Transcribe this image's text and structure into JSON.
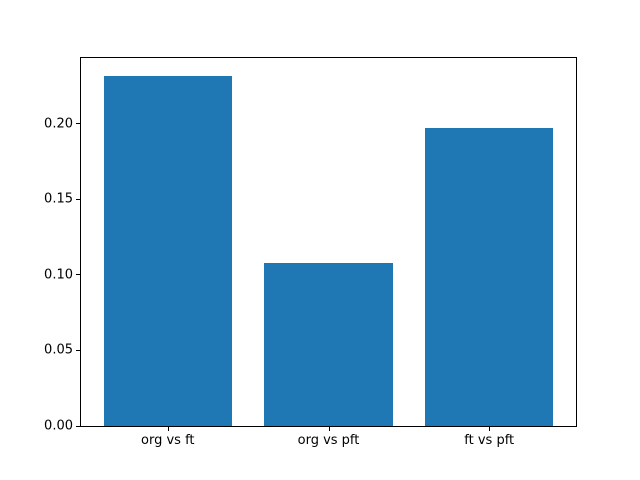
{
  "figure": {
    "background_color": "#ffffff"
  },
  "chart_data": {
    "type": "bar",
    "title": "",
    "xlabel": "",
    "ylabel": "",
    "categories": [
      "org vs ft",
      "org vs pft",
      "ft vs pft"
    ],
    "values": [
      0.232,
      0.108,
      0.197
    ],
    "bar_color": "#1f77b4",
    "bar_width": 0.8,
    "xlim": [
      -0.54,
      2.54
    ],
    "ylim": [
      0,
      0.2436
    ],
    "yticks": [
      0,
      0.05,
      0.1,
      0.15,
      0.2
    ],
    "ytick_labels": [
      "0.00",
      "0.05",
      "0.10",
      "0.15",
      "0.20"
    ],
    "grid": false,
    "legend": null,
    "spine_color": "#000000",
    "text_color": "#000000"
  }
}
